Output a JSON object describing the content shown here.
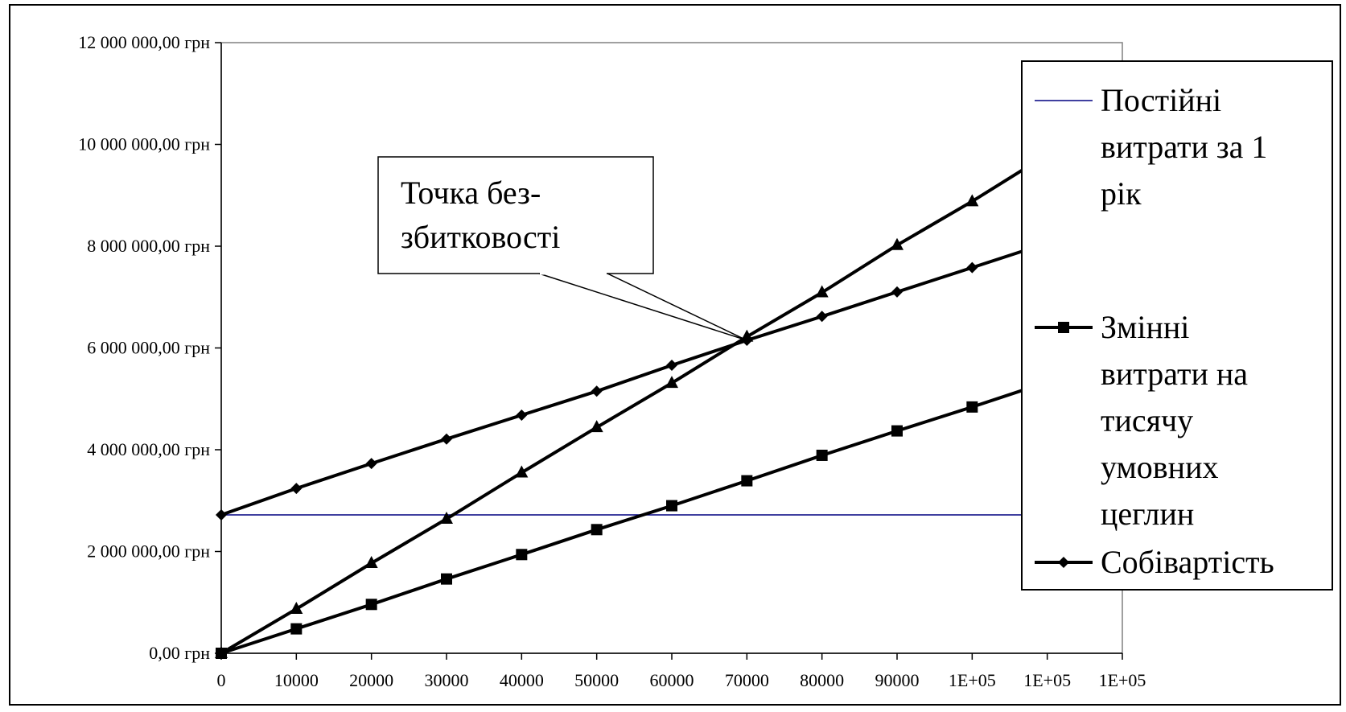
{
  "chart_data": {
    "type": "line",
    "title": "",
    "xlabel": "",
    "ylabel": "",
    "x": [
      0,
      10000,
      20000,
      30000,
      40000,
      50000,
      60000,
      70000,
      80000,
      90000,
      100000,
      110000,
      120000
    ],
    "x_tick_labels": [
      "0",
      "10000",
      "20000",
      "30000",
      "40000",
      "50000",
      "60000",
      "70000",
      "80000",
      "90000",
      "1E+05",
      "1E+05",
      "1E+05"
    ],
    "xlim": [
      0,
      120000
    ],
    "ylim": [
      0,
      12000000
    ],
    "y_ticks": [
      0,
      2000000,
      4000000,
      6000000,
      8000000,
      10000000,
      12000000
    ],
    "y_tick_labels": [
      "0,00 грн",
      "2 000 000,00 грн",
      "4 000 000,00 грн",
      "6 000 000,00 грн",
      "8 000 000,00 грн",
      "10 000 000,00 грн",
      "12 000 000,00 грн"
    ],
    "grid": false,
    "legend_position": "right",
    "series": [
      {
        "name": "Постійні витрати за 1 рік",
        "legend_lines": [
          "Постійні",
          "витрати за 1",
          "рік"
        ],
        "color": "#000080",
        "marker": "none",
        "values": [
          2720000,
          2720000,
          2720000,
          2720000,
          2720000,
          2720000,
          2720000,
          2720000,
          2720000,
          2720000,
          2720000,
          2720000,
          2720000
        ]
      },
      {
        "name": "Змінні витрати на тисячу умовних цеглин",
        "legend_lines": [
          "Змінні",
          "витрати на",
          "тисячу",
          "умовних",
          "цеглин"
        ],
        "color": "#000000",
        "marker": "square",
        "values": [
          0,
          480000,
          960000,
          1460000,
          1940000,
          2430000,
          2900000,
          3390000,
          3890000,
          4370000,
          4840000,
          5330000,
          5810000
        ]
      },
      {
        "name": "Собівартість",
        "legend_lines": [
          "Собівартість"
        ],
        "color": "#000000",
        "marker": "diamond",
        "values": [
          2720000,
          3240000,
          3730000,
          4210000,
          4680000,
          5150000,
          5660000,
          6150000,
          6620000,
          7100000,
          7580000,
          8060000,
          8540000
        ]
      },
      {
        "name": "",
        "legend_lines": [],
        "color": "#000000",
        "marker": "triangle",
        "values": [
          0,
          870000,
          1770000,
          2640000,
          3550000,
          4440000,
          5310000,
          6220000,
          7090000,
          8020000,
          8880000,
          9800000,
          10700000
        ]
      }
    ],
    "annotations": [
      {
        "text_lines": [
          "Точка без-",
          "збитковості"
        ],
        "points_to_x": 70000,
        "points_to_y": 6150000
      }
    ]
  }
}
